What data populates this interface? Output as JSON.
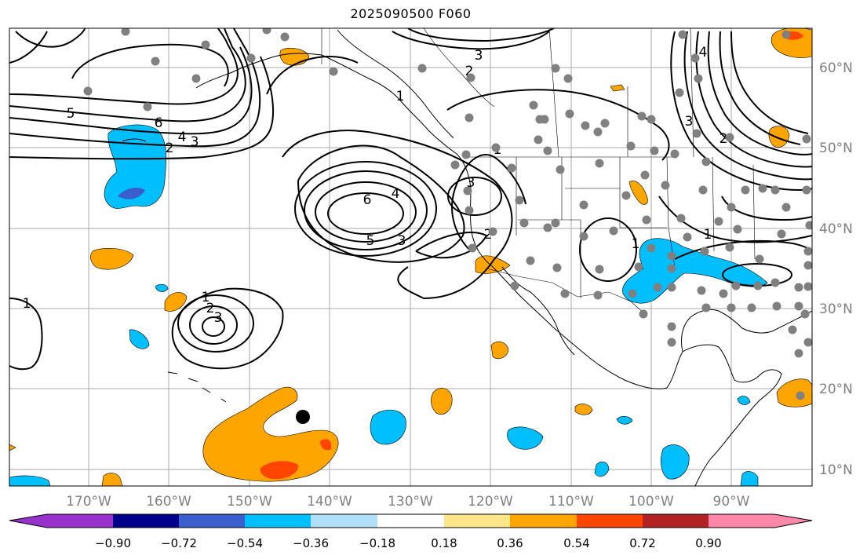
{
  "title": "2025090500 F060",
  "lon_labels": [
    "170°W",
    "160°W",
    "150°W",
    "140°W",
    "130°W",
    "120°W",
    "110°W",
    "100°W",
    "90°W"
  ],
  "lat_labels": [
    "60°N",
    "50°N",
    "40°N",
    "30°N",
    "20°N",
    "10°N"
  ],
  "contour_labels": [
    "1",
    "2",
    "3",
    "4",
    "5",
    "6"
  ],
  "colorbar": {
    "ticks": [
      "−0.90",
      "−0.72",
      "−0.54",
      "−0.36",
      "−0.18",
      "0.18",
      "0.36",
      "0.54",
      "0.72",
      "0.90"
    ],
    "colors": [
      "#9932cc",
      "#00008b",
      "#3a5fcd",
      "#00bfff",
      "#b0e0f8",
      "#ffffff",
      "#fde68a",
      "#ffa500",
      "#ff4500",
      "#b22222",
      "#ff88aa"
    ]
  },
  "fill_colors": {
    "light_blue": "#b0e0f8",
    "cyan": "#00bfff",
    "royal": "#3a5fcd",
    "yellow": "#fde68a",
    "orange": "#ffa500",
    "red_orange": "#ff4500"
  },
  "station_color": "#808080"
}
